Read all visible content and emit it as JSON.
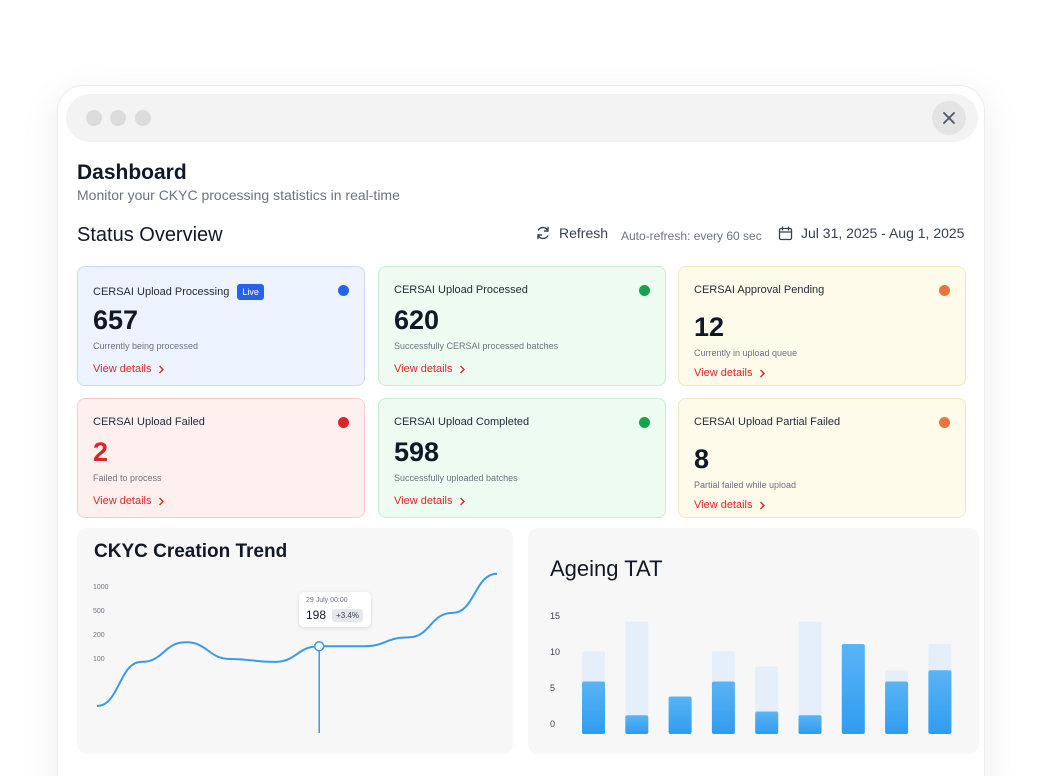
{
  "page": {
    "title": "Dashboard",
    "subtitle": "Monitor your CKYC processing statistics in real-time"
  },
  "status": {
    "title": "Status Overview",
    "refresh_label": "Refresh",
    "auto_refresh": "Auto-refresh: every 60 sec",
    "date_range": "Jul 31, 2025 - Aug 1, 2025"
  },
  "cards": [
    {
      "title": "CERSAI Upload Processing",
      "badge": "Live",
      "value": "657",
      "desc": "Currently being processed",
      "link": "View details",
      "dot_color": "#2563eb"
    },
    {
      "title": "CERSAI Upload Processed",
      "value": "620",
      "desc": "Successfully CERSAI processed batches",
      "link": "View details",
      "dot_color": "#16a34a"
    },
    {
      "title": "CERSAI Approval Pending",
      "value": "12",
      "desc": "Currently in upload queue",
      "link": "View details",
      "dot_color": "#e9743f"
    },
    {
      "title": "CERSAI Upload Failed",
      "value": "2",
      "desc": "Failed to process",
      "link": "View details",
      "dot_color": "#dc2626",
      "value_color": "#dc2626"
    },
    {
      "title": "CERSAI Upload Completed",
      "value": "598",
      "desc": "Successfully uploaded batches",
      "link": "View details",
      "dot_color": "#16a34a"
    },
    {
      "title": "CERSAI Upload Partial Failed",
      "value": "8",
      "desc": "Partial failed while upload",
      "link": "View details",
      "dot_color": "#e9743f"
    }
  ],
  "trend": {
    "title": "CKYC Creation Trend",
    "tooltip_date": "29 July 00:00",
    "tooltip_value": "198",
    "tooltip_change": "+3.4%"
  },
  "ageing": {
    "title": "Ageing TAT"
  },
  "chart_data": [
    {
      "type": "line",
      "title": "CKYC Creation Trend",
      "y_ticks": [
        "1000",
        "500",
        "200",
        "100"
      ],
      "x": [
        0,
        1,
        2,
        3,
        4,
        5,
        6,
        7,
        8,
        9
      ],
      "values": [
        0.0,
        0.45,
        0.65,
        0.48,
        0.45,
        0.61,
        0.61,
        0.7,
        0.95,
        1.35
      ],
      "highlight_index": 5
    },
    {
      "type": "bar",
      "title": "Ageing TAT",
      "y_ticks": [
        "15",
        "10",
        "5",
        "0"
      ],
      "ylim": [
        0,
        16
      ],
      "values": [
        7,
        2.5,
        5,
        7,
        3,
        2.5,
        12,
        7,
        8.5
      ],
      "totals": [
        11,
        15,
        5,
        11,
        9,
        15,
        12,
        8.5,
        12
      ]
    }
  ],
  "colors": {
    "accent": "#2563eb",
    "link": "#dc2626",
    "line": "#3b9ae8",
    "bar": "#35a2f2",
    "bar_bg": "#e5effb"
  }
}
